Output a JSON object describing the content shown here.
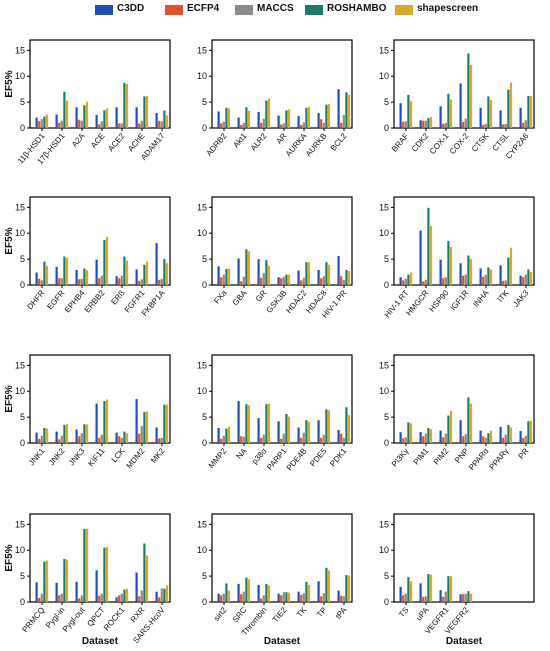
{
  "legend": {
    "items": [
      {
        "label": "C3DD",
        "color": "#1f4fb4"
      },
      {
        "label": "ECFP4",
        "color": "#e0522a"
      },
      {
        "label": "MACCS",
        "color": "#8c8c8c"
      },
      {
        "label": "ROSHAMBO",
        "color": "#1e7b6b"
      },
      {
        "label": "shapescreen",
        "color": "#d9a928"
      }
    ]
  },
  "axis_label_y": "EF5%",
  "axis_label_x": "Dataset",
  "chart_data": [
    {
      "type": "bar",
      "ylim": [
        0,
        17
      ],
      "yticks": [
        0,
        5,
        10,
        15
      ],
      "categories": [
        "11β-HSD1",
        "17β-HSD1",
        "A2A",
        "ACE",
        "ACE2",
        "AChE",
        "ADAM17"
      ],
      "series": [
        {
          "name": "C3DD",
          "values": [
            2.0,
            2.6,
            4.0,
            2.5,
            4.0,
            4.0,
            2.9
          ]
        },
        {
          "name": "ECFP4",
          "values": [
            1.3,
            1.0,
            1.6,
            0.7,
            0.9,
            0.9,
            1.4
          ]
        },
        {
          "name": "MACCS",
          "values": [
            1.7,
            1.4,
            1.4,
            1.3,
            0.9,
            1.4,
            1.3
          ]
        },
        {
          "name": "ROSHAMBO",
          "values": [
            2.2,
            7.0,
            4.4,
            3.4,
            8.7,
            6.1,
            3.4
          ]
        },
        {
          "name": "shapescreen",
          "values": [
            2.6,
            5.3,
            5.1,
            3.8,
            8.5,
            6.2,
            2.4
          ]
        }
      ]
    },
    {
      "type": "bar",
      "ylim": [
        0,
        17
      ],
      "yticks": [
        0,
        5,
        10,
        15
      ],
      "categories": [
        "ADRB2",
        "Akt1",
        "ALR2",
        "AR",
        "AURKA",
        "AURKB",
        "BCL2"
      ],
      "series": [
        {
          "name": "C3DD",
          "values": [
            3.2,
            2.0,
            3.1,
            2.4,
            2.3,
            2.9,
            7.5
          ]
        },
        {
          "name": "ECFP4",
          "values": [
            0.9,
            0.6,
            1.0,
            0.7,
            0.6,
            1.7,
            1.0
          ]
        },
        {
          "name": "MACCS",
          "values": [
            1.2,
            1.0,
            1.8,
            0.9,
            1.1,
            1.0,
            2.5
          ]
        },
        {
          "name": "ROSHAMBO",
          "values": [
            3.9,
            4.0,
            5.3,
            3.4,
            3.9,
            4.5,
            6.9
          ]
        },
        {
          "name": "shapescreen",
          "values": [
            3.8,
            3.3,
            5.7,
            3.6,
            4.1,
            4.6,
            6.4
          ]
        }
      ]
    },
    {
      "type": "bar",
      "ylim": [
        0,
        17
      ],
      "yticks": [
        0,
        5,
        10,
        15
      ],
      "categories": [
        "BRAF",
        "CDK2",
        "COX-1",
        "COX-2",
        "CTSK",
        "CTSL",
        "CYP2A6"
      ],
      "series": [
        {
          "name": "C3DD",
          "values": [
            4.8,
            1.5,
            4.2,
            8.6,
            3.9,
            3.4,
            3.9
          ]
        },
        {
          "name": "ECFP4",
          "values": [
            1.2,
            1.4,
            0.8,
            1.2,
            0.6,
            0.7,
            1.0
          ]
        },
        {
          "name": "MACCS",
          "values": [
            1.3,
            1.4,
            1.0,
            1.8,
            0.8,
            0.8,
            1.5
          ]
        },
        {
          "name": "ROSHAMBO",
          "values": [
            6.4,
            1.9,
            6.6,
            14.4,
            6.1,
            7.4,
            6.2
          ]
        },
        {
          "name": "shapescreen",
          "values": [
            5.2,
            2.1,
            5.5,
            12.2,
            5.4,
            8.8,
            6.2
          ]
        }
      ]
    },
    {
      "type": "bar",
      "ylim": [
        0,
        17
      ],
      "yticks": [
        0,
        5,
        10,
        15
      ],
      "categories": [
        "DHFR",
        "EGFR",
        "EPHB4",
        "ERBB2",
        "ERß",
        "FGFR1",
        "FKBP1A"
      ],
      "series": [
        {
          "name": "C3DD",
          "values": [
            2.4,
            3.5,
            2.9,
            4.9,
            1.7,
            3.0,
            8.1
          ]
        },
        {
          "name": "ECFP4",
          "values": [
            1.2,
            1.3,
            1.1,
            1.3,
            1.3,
            0.8,
            1.0
          ]
        },
        {
          "name": "MACCS",
          "values": [
            0.9,
            1.3,
            1.2,
            1.8,
            1.8,
            1.1,
            1.2
          ]
        },
        {
          "name": "ROSHAMBO",
          "values": [
            4.5,
            5.5,
            3.2,
            8.7,
            5.5,
            3.9,
            5.0
          ]
        },
        {
          "name": "shapescreen",
          "values": [
            3.7,
            5.2,
            2.9,
            9.3,
            4.7,
            4.5,
            4.2
          ]
        }
      ]
    },
    {
      "type": "bar",
      "ylim": [
        0,
        17
      ],
      "yticks": [
        0,
        5,
        10,
        15
      ],
      "categories": [
        "FXa",
        "GBA",
        "GR",
        "GSK3B",
        "HDAC2",
        "HDAC8",
        "HIV-1 PR"
      ],
      "series": [
        {
          "name": "C3DD",
          "values": [
            3.6,
            5.1,
            5.0,
            1.5,
            2.8,
            2.9,
            5.6
          ]
        },
        {
          "name": "ECFP4",
          "values": [
            1.5,
            0.7,
            1.4,
            1.3,
            0.9,
            1.3,
            1.7
          ]
        },
        {
          "name": "MACCS",
          "values": [
            2.0,
            1.6,
            2.3,
            1.6,
            1.4,
            1.7,
            1.0
          ]
        },
        {
          "name": "ROSHAMBO",
          "values": [
            3.1,
            6.9,
            4.8,
            2.0,
            4.4,
            4.4,
            2.9
          ]
        },
        {
          "name": "shapescreen",
          "values": [
            3.2,
            6.5,
            3.7,
            2.0,
            4.4,
            3.9,
            2.7
          ]
        }
      ]
    },
    {
      "type": "bar",
      "ylim": [
        0,
        17
      ],
      "yticks": [
        0,
        5,
        10,
        15
      ],
      "categories": [
        "HIV-1 RT",
        "HMGCR",
        "HSP90",
        "IGF1R",
        "INHA",
        "ITK",
        "JAK3"
      ],
      "series": [
        {
          "name": "C3DD",
          "values": [
            1.5,
            10.5,
            4.9,
            4.2,
            3.2,
            3.8,
            1.8
          ]
        },
        {
          "name": "ECFP4",
          "values": [
            0.9,
            0.7,
            1.3,
            1.8,
            1.6,
            0.8,
            1.5
          ]
        },
        {
          "name": "MACCS",
          "values": [
            1.2,
            1.0,
            1.5,
            2.0,
            2.0,
            0.9,
            2.0
          ]
        },
        {
          "name": "ROSHAMBO",
          "values": [
            2.0,
            14.9,
            8.5,
            5.7,
            3.4,
            5.3,
            3.0
          ]
        },
        {
          "name": "shapescreen",
          "values": [
            2.4,
            11.4,
            7.4,
            5.0,
            3.0,
            7.2,
            2.5
          ]
        }
      ]
    },
    {
      "type": "bar",
      "ylim": [
        0,
        17
      ],
      "yticks": [
        0,
        5,
        10,
        15
      ],
      "categories": [
        "JNK1",
        "JNK2",
        "JNK3",
        "KIF11",
        "LCK",
        "MDM2",
        "MK2"
      ],
      "series": [
        {
          "name": "C3DD",
          "values": [
            2.0,
            2.2,
            2.6,
            7.6,
            2.0,
            8.5,
            3.0
          ]
        },
        {
          "name": "ECFP4",
          "values": [
            0.8,
            0.7,
            1.3,
            1.0,
            1.3,
            1.8,
            0.9
          ]
        },
        {
          "name": "MACCS",
          "values": [
            1.4,
            1.4,
            1.9,
            1.6,
            1.0,
            3.3,
            1.0
          ]
        },
        {
          "name": "ROSHAMBO",
          "values": [
            2.9,
            3.5,
            3.6,
            8.1,
            2.2,
            6.0,
            7.4
          ]
        },
        {
          "name": "shapescreen",
          "values": [
            2.8,
            3.7,
            3.6,
            8.4,
            1.9,
            6.1,
            7.4
          ]
        }
      ]
    },
    {
      "type": "bar",
      "ylim": [
        0,
        17
      ],
      "yticks": [
        0,
        5,
        10,
        15
      ],
      "categories": [
        "MMP2",
        "NA",
        "p38α",
        "PARP1",
        "PDE4B",
        "PDE5",
        "PDK1"
      ],
      "series": [
        {
          "name": "C3DD",
          "values": [
            2.9,
            8.1,
            4.8,
            4.2,
            3.0,
            4.4,
            2.5
          ]
        },
        {
          "name": "ECFP4",
          "values": [
            0.8,
            1.3,
            1.0,
            0.8,
            1.0,
            1.0,
            1.8
          ]
        },
        {
          "name": "MACCS",
          "values": [
            1.4,
            1.2,
            1.6,
            1.8,
            2.0,
            1.6,
            1.0
          ]
        },
        {
          "name": "ROSHAMBO",
          "values": [
            2.8,
            7.5,
            7.5,
            5.6,
            4.4,
            6.5,
            6.9
          ]
        },
        {
          "name": "shapescreen",
          "values": [
            3.2,
            7.3,
            7.6,
            5.1,
            4.1,
            6.3,
            5.4
          ]
        }
      ]
    },
    {
      "type": "bar",
      "ylim": [
        0,
        17
      ],
      "yticks": [
        0,
        5,
        10,
        15
      ],
      "categories": [
        "PI3Kγ",
        "PIM1",
        "PIM2",
        "PNP",
        "PPARα",
        "PPARγ",
        "PR"
      ],
      "series": [
        {
          "name": "C3DD",
          "values": [
            2.1,
            2.1,
            2.4,
            4.4,
            2.4,
            3.1,
            2.3
          ]
        },
        {
          "name": "ECFP4",
          "values": [
            0.9,
            1.3,
            1.1,
            1.3,
            1.3,
            1.0,
            1.0
          ]
        },
        {
          "name": "MACCS",
          "values": [
            1.1,
            1.8,
            1.8,
            1.7,
            1.0,
            1.6,
            1.4
          ]
        },
        {
          "name": "ROSHAMBO",
          "values": [
            4.0,
            2.9,
            5.3,
            8.8,
            1.9,
            3.5,
            4.2
          ]
        },
        {
          "name": "shapescreen",
          "values": [
            3.8,
            2.7,
            6.2,
            7.6,
            2.4,
            3.0,
            4.3
          ]
        }
      ]
    },
    {
      "type": "bar",
      "ylim": [
        0,
        17
      ],
      "yticks": [
        0,
        5,
        10,
        15
      ],
      "categories": [
        "PRMCQ",
        "Pygl-in",
        "Pygl-out",
        "QPCT",
        "ROCK1",
        "RXR",
        "SARS-HcoV"
      ],
      "series": [
        {
          "name": "C3DD",
          "values": [
            3.8,
            3.7,
            3.9,
            6.1,
            0.9,
            5.7,
            2.0
          ]
        },
        {
          "name": "ECFP4",
          "values": [
            0.8,
            1.3,
            0.7,
            1.2,
            1.3,
            1.1,
            0.9
          ]
        },
        {
          "name": "MACCS",
          "values": [
            1.6,
            1.6,
            1.3,
            1.6,
            1.6,
            2.2,
            2.6
          ]
        },
        {
          "name": "ROSHAMBO",
          "values": [
            7.8,
            8.3,
            14.1,
            10.5,
            2.4,
            11.3,
            2.6
          ]
        },
        {
          "name": "shapescreen",
          "values": [
            8.0,
            8.2,
            14.1,
            10.6,
            2.6,
            9.0,
            3.2
          ]
        }
      ]
    },
    {
      "type": "bar",
      "ylim": [
        0,
        17
      ],
      "yticks": [
        0,
        5,
        10,
        15
      ],
      "categories": [
        "sirt2",
        "SRC",
        "Thrombin",
        "TIE2",
        "TK",
        "TP",
        "tPA"
      ],
      "series": [
        {
          "name": "C3DD",
          "values": [
            1.6,
            3.5,
            3.3,
            1.6,
            2.0,
            4.0,
            2.2
          ]
        },
        {
          "name": "ECFP4",
          "values": [
            1.3,
            1.5,
            0.7,
            1.3,
            1.4,
            1.1,
            1.2
          ]
        },
        {
          "name": "MACCS",
          "values": [
            1.6,
            2.0,
            1.3,
            1.9,
            1.7,
            1.7,
            1.1
          ]
        },
        {
          "name": "ROSHAMBO",
          "values": [
            3.6,
            4.7,
            3.5,
            1.9,
            3.9,
            6.6,
            5.2
          ]
        },
        {
          "name": "shapescreen",
          "values": [
            2.2,
            4.4,
            3.2,
            1.8,
            3.3,
            6.1,
            5.1
          ]
        }
      ]
    },
    {
      "type": "bar",
      "ylim": [
        0,
        17
      ],
      "yticks": [
        0,
        5,
        10,
        15
      ],
      "categories": [
        "TS",
        "uPA",
        "VEGFR1",
        "VEGFR2"
      ],
      "series": [
        {
          "name": "C3DD",
          "values": [
            2.9,
            3.6,
            2.3,
            1.5
          ]
        },
        {
          "name": "ECFP4",
          "values": [
            1.3,
            1.0,
            1.0,
            1.5
          ]
        },
        {
          "name": "MACCS",
          "values": [
            1.6,
            1.1,
            2.0,
            1.6
          ]
        },
        {
          "name": "ROSHAMBO",
          "values": [
            4.8,
            5.4,
            5.0,
            2.1
          ]
        },
        {
          "name": "shapescreen",
          "values": [
            4.0,
            5.3,
            5.0,
            1.6
          ]
        }
      ]
    }
  ]
}
